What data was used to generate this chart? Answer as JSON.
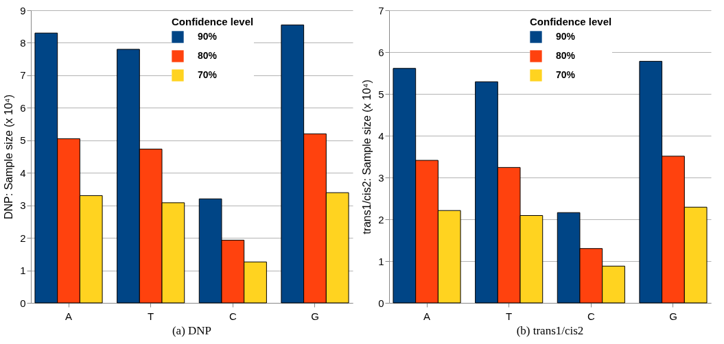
{
  "chart_data": [
    {
      "type": "bar",
      "title": "(a) DNP",
      "ylabel": "DNP: Sample size (x 10⁴)",
      "legend_title": "Confidence level",
      "legend": "top",
      "grid": "y",
      "categories": [
        "A",
        "T",
        "C",
        "G"
      ],
      "ylim": [
        0,
        9
      ],
      "yticks": [
        0,
        1,
        2,
        3,
        4,
        5,
        6,
        7,
        8,
        9
      ],
      "series": [
        {
          "name": "90%",
          "color": "#004586",
          "values": [
            8.3,
            7.8,
            3.2,
            8.55
          ]
        },
        {
          "name": "80%",
          "color": "#ff420e",
          "values": [
            5.05,
            4.73,
            1.93,
            5.2
          ]
        },
        {
          "name": "70%",
          "color": "#ffd320",
          "values": [
            3.3,
            3.08,
            1.26,
            3.39
          ]
        }
      ]
    },
    {
      "type": "bar",
      "title": "(b) trans1/cis2",
      "ylabel": "trans1/cis2: Sample size (x 10⁴)",
      "legend_title": "Confidence level",
      "legend": "top",
      "grid": "y",
      "categories": [
        "A",
        "T",
        "C",
        "G"
      ],
      "ylim": [
        0,
        7
      ],
      "yticks": [
        0,
        1,
        2,
        3,
        4,
        5,
        6,
        7
      ],
      "series": [
        {
          "name": "90%",
          "color": "#004586",
          "values": [
            5.61,
            5.29,
            2.16,
            5.78
          ]
        },
        {
          "name": "80%",
          "color": "#ff420e",
          "values": [
            3.41,
            3.24,
            1.3,
            3.51
          ]
        },
        {
          "name": "70%",
          "color": "#ffd320",
          "values": [
            2.21,
            2.09,
            0.88,
            2.29
          ]
        }
      ]
    }
  ]
}
